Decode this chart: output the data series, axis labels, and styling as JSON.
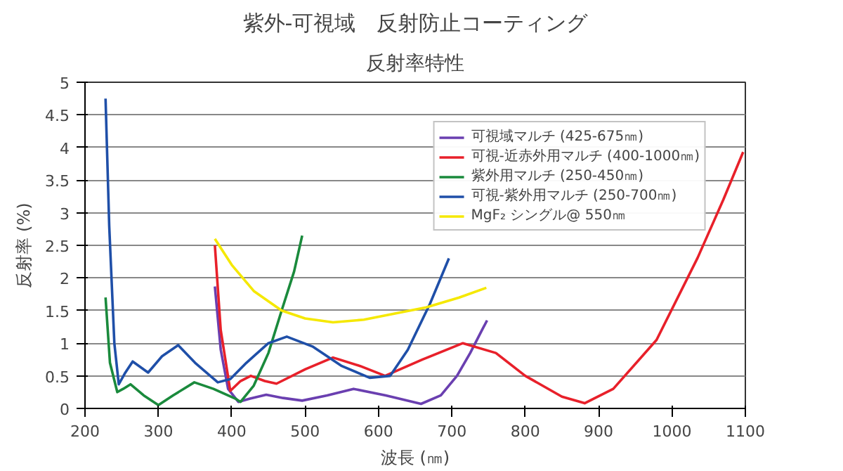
{
  "chart_data": {
    "type": "line",
    "title": "紫外-可視域　反射防止コーティング",
    "subtitle": "反射率特性",
    "xlabel": "波長 (㎚)",
    "ylabel": "反射率 (%)",
    "xlim": [
      200,
      1100
    ],
    "xticks": [
      200,
      300,
      400,
      500,
      600,
      700,
      800,
      900,
      1000,
      1100
    ],
    "ylim": [
      0,
      5
    ],
    "yticks": [
      0,
      0.5,
      1,
      1.5,
      2,
      2.5,
      3,
      3.5,
      4,
      4.5,
      5
    ],
    "grid": "y",
    "legend": "top right",
    "marker": "none",
    "line_style": "solid",
    "series": [
      {
        "name": "可視域マルチ (425-675㎚)",
        "color": "#6a3fb0",
        "x": [
          377,
          385,
          395,
          409,
          425,
          447,
          470,
          496,
          530,
          566,
          610,
          658,
          685,
          707,
          725,
          741,
          748
        ],
        "values": [
          1.87,
          0.9,
          0.3,
          0.1,
          0.15,
          0.21,
          0.16,
          0.12,
          0.2,
          0.3,
          0.2,
          0.07,
          0.2,
          0.5,
          0.85,
          1.2,
          1.35
        ]
      },
      {
        "name": "可視-近赤外用マルチ (400-1000㎚)",
        "color": "#e8202a",
        "x": [
          377,
          385,
          398,
          412,
          426,
          445,
          461,
          500,
          538,
          575,
          609,
          660,
          715,
          760,
          800,
          850,
          881,
          920,
          979,
          1035,
          1070,
          1097
        ],
        "values": [
          2.5,
          1.2,
          0.27,
          0.42,
          0.5,
          0.42,
          0.38,
          0.6,
          0.78,
          0.65,
          0.5,
          0.75,
          1.0,
          0.85,
          0.5,
          0.18,
          0.08,
          0.3,
          1.05,
          2.31,
          3.2,
          3.93
        ]
      },
      {
        "name": "紫外用マルチ (250-450㎚)",
        "color": "#1a8a3c",
        "x": [
          228,
          234,
          244,
          252,
          262,
          280,
          300,
          320,
          349,
          375,
          405,
          412,
          430,
          450,
          468,
          485,
          496
        ],
        "values": [
          1.7,
          0.7,
          0.25,
          0.3,
          0.37,
          0.2,
          0.05,
          0.2,
          0.4,
          0.3,
          0.15,
          0.1,
          0.35,
          0.85,
          1.5,
          2.1,
          2.65
        ]
      },
      {
        "name": "可視-紫外用マルチ (250-700㎚)",
        "color": "#1f4fa8",
        "x": [
          228,
          233,
          240,
          246,
          255,
          265,
          286,
          305,
          327,
          350,
          381,
          398,
          420,
          450,
          475,
          510,
          550,
          588,
          616,
          640,
          670,
          696
        ],
        "values": [
          4.75,
          2.8,
          1.0,
          0.37,
          0.55,
          0.72,
          0.55,
          0.8,
          0.97,
          0.7,
          0.4,
          0.45,
          0.7,
          1.0,
          1.1,
          0.95,
          0.65,
          0.47,
          0.5,
          0.9,
          1.6,
          2.3
        ]
      },
      {
        "name": "MgF₂ シングル@ 550㎚",
        "color": "#f5e800",
        "x": [
          377,
          400,
          430,
          468,
          500,
          538,
          580,
          620,
          665,
          710,
          747
        ],
        "values": [
          2.6,
          2.2,
          1.8,
          1.5,
          1.38,
          1.32,
          1.36,
          1.45,
          1.55,
          1.7,
          1.85
        ]
      }
    ]
  }
}
